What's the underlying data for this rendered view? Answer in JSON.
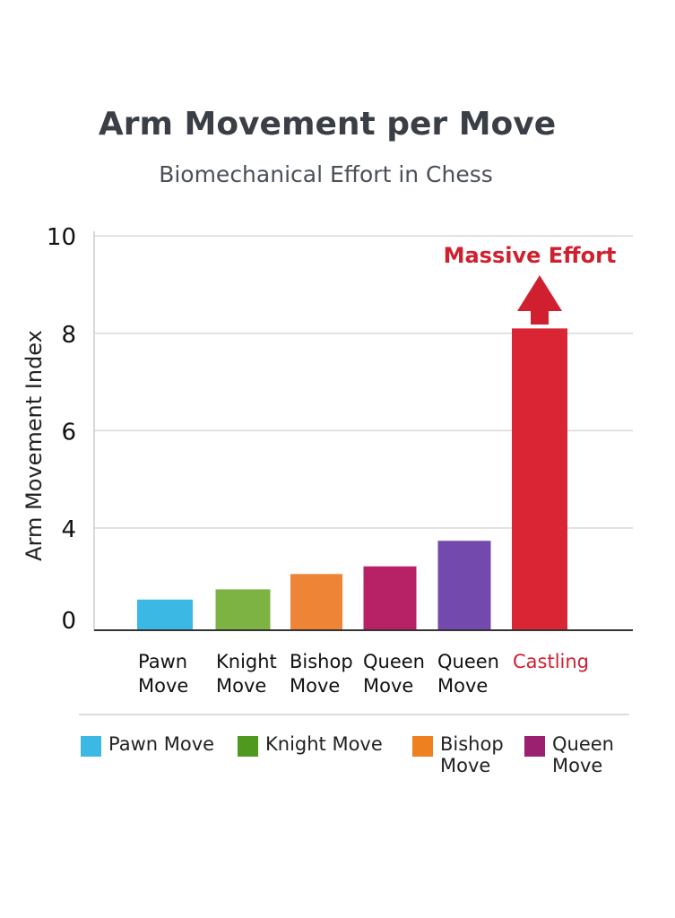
{
  "title": "Arm Movement per Move",
  "subtitle": "Biomechanical Effort in Chess",
  "chart_data": {
    "type": "bar",
    "title": "Arm Movement per Move",
    "subtitle": "Biomechanical Effort in Chess",
    "ylabel": "Arm Movement Index",
    "xlabel": "",
    "ylim": [
      0,
      10
    ],
    "yticks": [
      "10",
      "8",
      "6",
      "4",
      "0"
    ],
    "grid": true,
    "categories": [
      "Pawn Move",
      "Knight Move",
      "Bishop Move",
      "Queen Move",
      "Queen Move",
      "Castling"
    ],
    "values": [
      1.2,
      1.6,
      2.2,
      2.5,
      3.5,
      8.1
    ],
    "colors": [
      "#3bb8e4",
      "#7cb342",
      "#ee8435",
      "#b72266",
      "#7349ad",
      "#d92534"
    ],
    "annotation": {
      "text": "Massive Effort",
      "target": "Castling",
      "color": "#d02030",
      "arrow": "up"
    },
    "legend": {
      "placement": "bottom",
      "entries": [
        {
          "label": "Pawn Move",
          "color": "#3bb8e4"
        },
        {
          "label": "Knight Move",
          "color": "#4f9a1e"
        },
        {
          "label": "Bishop Move",
          "color": "#ee8020"
        },
        {
          "label": "Queen Move",
          "color": "#9b2070"
        }
      ]
    }
  }
}
